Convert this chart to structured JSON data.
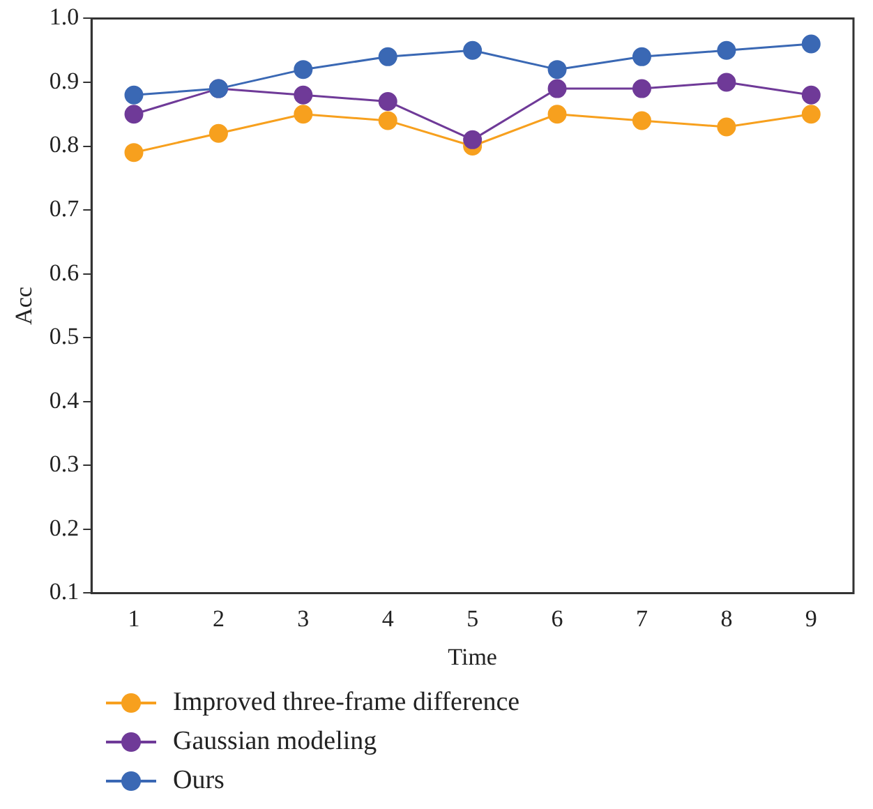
{
  "chart_data": {
    "type": "line",
    "xlabel": "Time",
    "ylabel": "Acc",
    "categories": [
      "1",
      "2",
      "3",
      "4",
      "5",
      "6",
      "7",
      "8",
      "9"
    ],
    "ylim": [
      0.1,
      1.0
    ],
    "yticks": [
      {
        "value": 0.1,
        "label": "0.1"
      },
      {
        "value": 0.2,
        "label": "0.2"
      },
      {
        "value": 0.3,
        "label": "0.3"
      },
      {
        "value": 0.4,
        "label": "0.4"
      },
      {
        "value": 0.5,
        "label": "0.5"
      },
      {
        "value": 0.6,
        "label": "0.6"
      },
      {
        "value": 0.7,
        "label": "0.7"
      },
      {
        "value": 0.8,
        "label": "0.8"
      },
      {
        "value": 0.9,
        "label": "0.9"
      },
      {
        "value": 1.0,
        "label": "1.0"
      }
    ],
    "grid": false,
    "legend": "bottom",
    "marker": "circle",
    "line_style": "solid",
    "series": [
      {
        "name": "Improved three-frame difference",
        "color": "#f7a01e",
        "values": [
          0.79,
          0.82,
          0.85,
          0.84,
          0.8,
          0.85,
          0.84,
          0.83,
          0.85
        ]
      },
      {
        "name": "Gaussian modeling",
        "color": "#6f3a98",
        "values": [
          0.85,
          0.89,
          0.88,
          0.87,
          0.81,
          0.89,
          0.89,
          0.9,
          0.88
        ]
      },
      {
        "name": "Ours",
        "color": "#3a68b4",
        "values": [
          0.88,
          0.89,
          0.92,
          0.94,
          0.95,
          0.92,
          0.94,
          0.95,
          0.96
        ]
      }
    ]
  }
}
